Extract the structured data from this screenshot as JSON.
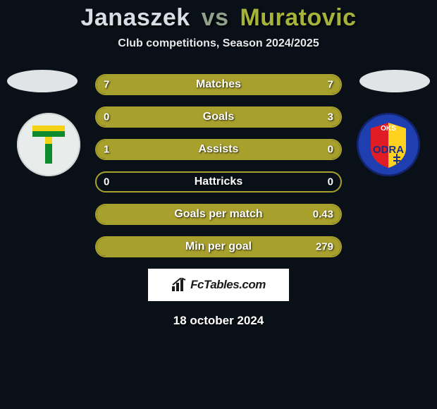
{
  "title": {
    "left": "Janaszek",
    "vs": "vs",
    "right": "Muratovic",
    "color_left": "#d6dde4",
    "color_vs": "#8fa18a",
    "color_right": "#a6b33a",
    "fontsize": 34
  },
  "subtitle": {
    "text": "Club competitions, Season 2024/2025",
    "color": "#e6e9ec",
    "fontsize": 16
  },
  "colors": {
    "background": "#0a1018",
    "accent": "#a8a02c",
    "track_border": "#a8a02c",
    "fill_left": "#a8a02c",
    "fill_right": "#a8a02c",
    "oval": "#e1e4e7",
    "brand_bg": "#ffffff",
    "brand_text": "#1b1b1b"
  },
  "badges": {
    "left": {
      "bg": "#e8eceb",
      "svg_primary": "#0d8a2e",
      "svg_secondary": "#f4d316"
    },
    "right": {
      "bg": "#1f3fb0",
      "ring": "#1a2e85",
      "accent1": "#e01c24",
      "accent2": "#ffd21f",
      "text": "#ffffff"
    }
  },
  "bars": {
    "label_fontsize": 16,
    "value_fontsize": 15,
    "rows": [
      {
        "label": "Matches",
        "left": "7",
        "right": "7",
        "pct_left": 50,
        "pct_right": 50
      },
      {
        "label": "Goals",
        "left": "0",
        "right": "3",
        "pct_left": 0,
        "pct_right": 100
      },
      {
        "label": "Assists",
        "left": "1",
        "right": "0",
        "pct_left": 100,
        "pct_right": 0
      },
      {
        "label": "Hattricks",
        "left": "0",
        "right": "0",
        "pct_left": 0,
        "pct_right": 0
      },
      {
        "label": "Goals per match",
        "left": "",
        "right": "0.43",
        "pct_left": 0,
        "pct_right": 100
      },
      {
        "label": "Min per goal",
        "left": "",
        "right": "279",
        "pct_left": 0,
        "pct_right": 100
      }
    ]
  },
  "brand": {
    "text": "FcTables.com",
    "fontsize": 17
  },
  "date": {
    "text": "18 october 2024",
    "fontsize": 17
  }
}
